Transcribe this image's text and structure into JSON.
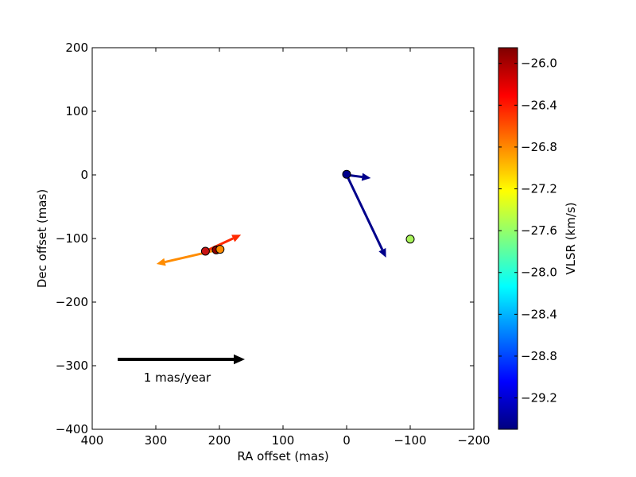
{
  "chart_data": {
    "type": "scatter",
    "xlabel": "RA offset (mas)",
    "ylabel": "Dec offset (mas)",
    "xlim": [
      400,
      -200
    ],
    "ylim": [
      -400,
      200
    ],
    "xticks": [
      400,
      300,
      200,
      100,
      0,
      -100,
      -200
    ],
    "xtick_labels": [
      "400",
      "300",
      "200",
      "100",
      "0",
      "−100",
      "−200"
    ],
    "yticks": [
      200,
      100,
      0,
      -100,
      -200,
      -300,
      -400
    ],
    "ytick_labels": [
      "200",
      "100",
      "0",
      "−100",
      "−200",
      "−300",
      "−400"
    ],
    "grid": false,
    "colorbar": {
      "label": "VLSR (km/s)",
      "range": [
        -29.5,
        -25.85
      ],
      "ticks": [
        -26.0,
        -26.4,
        -26.8,
        -27.2,
        -27.6,
        -28.0,
        -28.4,
        -28.8,
        -29.2
      ],
      "tick_labels": [
        "−26.0",
        "−26.4",
        "−26.8",
        "−27.2",
        "−27.6",
        "−28.0",
        "−28.4",
        "−28.8",
        "−29.2"
      ],
      "colormap": "jet"
    },
    "points": [
      {
        "x": 0,
        "y": 1,
        "vlsr": -29.5,
        "color": "#00008b"
      },
      {
        "x": -100,
        "y": -101,
        "vlsr": -27.4,
        "color": "#a8f35a"
      },
      {
        "x": 222,
        "y": -120,
        "vlsr": -25.95,
        "color": "#c81414"
      },
      {
        "x": 205,
        "y": -118,
        "vlsr": -25.85,
        "color": "#8b0000"
      },
      {
        "x": 199,
        "y": -117,
        "vlsr": -26.6,
        "color": "#ff8c00"
      }
    ],
    "vectors": [
      {
        "x": 0,
        "y": 0,
        "dx": 38,
        "dy": -5,
        "color": "#00008b"
      },
      {
        "x": 0,
        "y": 0,
        "dx": 62,
        "dy": -130,
        "color": "#00008b"
      },
      {
        "x": 222,
        "y": -120,
        "dx": 56,
        "dy": 26,
        "color": "#ff2a00"
      },
      {
        "x": 199,
        "y": -117,
        "dx": -100,
        "dy": -23,
        "color": "#ff8c00"
      }
    ],
    "scale_bar": {
      "x": 360,
      "y": -290,
      "dx": -200,
      "dy": 0,
      "color": "#000000",
      "label": "1 mas/year"
    }
  }
}
